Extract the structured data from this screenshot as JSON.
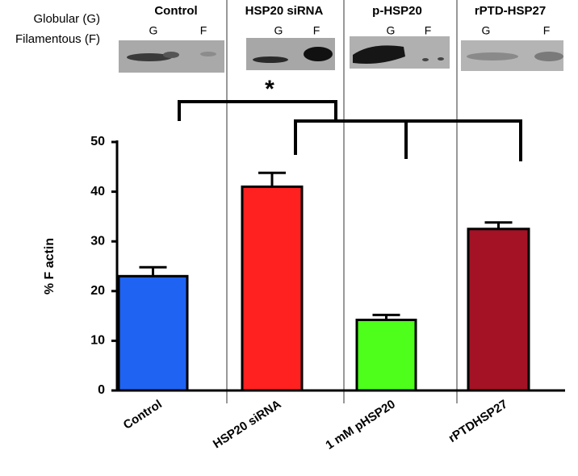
{
  "chart_data": {
    "type": "bar",
    "panel_titles": [
      "Control",
      "HSP20 siRNA",
      "p-HSP20",
      "rPTD-HSP27"
    ],
    "row_labels": [
      "Globular (G)",
      "Filamentous (F)"
    ],
    "lane_labels": [
      "G",
      "F",
      "G",
      "F",
      "G",
      "F",
      "G",
      "F"
    ],
    "annotation": "*",
    "categories": [
      "Control",
      "HSP20 siRNA",
      "1 mM pHSP20",
      "rPTDHSP27"
    ],
    "values": [
      23,
      41,
      14.2,
      32.5
    ],
    "errors": [
      1.8,
      2.8,
      1.0,
      1.3
    ],
    "colors": [
      "#1f63f2",
      "#ff2020",
      "#4dff1a",
      "#a31225"
    ],
    "ylabel": "% F actin",
    "ylim": [
      0,
      50
    ],
    "yticks": [
      0,
      10,
      20,
      30,
      40,
      50
    ]
  }
}
